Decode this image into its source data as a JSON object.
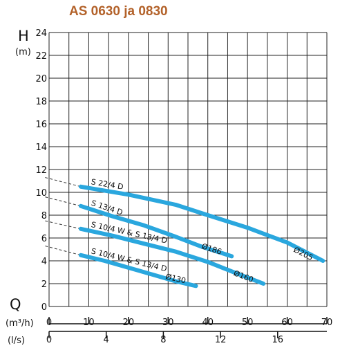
{
  "title": "AS 0630 ja 0830",
  "colors": {
    "title": "#b3622a",
    "curve": "#2aa7de",
    "grid": "#222222",
    "extension": "#333333"
  },
  "chart_data": {
    "type": "line",
    "title": "AS 0630 ja 0830",
    "y_axis": {
      "letter": "H",
      "unit": "(m)",
      "ticks": [
        "0",
        "2",
        "4",
        "6",
        "8",
        "10",
        "12",
        "14",
        "16",
        "18",
        "20",
        "22",
        "24"
      ],
      "ylim": [
        0,
        24
      ]
    },
    "x_axis": {
      "letter": "Q",
      "unit_primary": "(m³/h)",
      "ticks_primary": [
        "0",
        "10",
        "20",
        "30",
        "40",
        "50",
        "60",
        "70"
      ],
      "xlim": [
        0,
        70
      ],
      "unit_secondary": "(l/s)",
      "ticks_secondary": [
        "0",
        "4",
        "8",
        "12",
        "16"
      ]
    },
    "grid": true,
    "series": [
      {
        "name": "S 22/4 D",
        "end_label": "Ø205",
        "x": [
          8,
          20,
          32,
          40,
          50,
          60,
          69
        ],
        "y": [
          10.5,
          9.8,
          8.9,
          8.0,
          6.9,
          5.6,
          4.0
        ],
        "extension": [
          [
            -1,
            11.3
          ],
          [
            8,
            10.5
          ]
        ]
      },
      {
        "name": "S 13/4 D",
        "end_label": "Ø186",
        "x": [
          8,
          16,
          24,
          32,
          38,
          46
        ],
        "y": [
          8.8,
          7.9,
          7.1,
          6.1,
          5.3,
          4.4
        ],
        "extension": [
          [
            -1,
            9.6
          ],
          [
            8,
            8.8
          ]
        ]
      },
      {
        "name": "S 10/4 W & S 13/4 D",
        "end_label": "Ø160",
        "x": [
          8,
          16,
          24,
          32,
          40,
          48,
          54
        ],
        "y": [
          6.8,
          6.2,
          5.5,
          4.8,
          3.9,
          2.8,
          2.0
        ],
        "extension": [
          [
            -1,
            7.5
          ],
          [
            8,
            6.8
          ]
        ]
      },
      {
        "name": "S 10/4 W & S 13/4 D",
        "end_label": "Ø130",
        "x": [
          8,
          14,
          20,
          26,
          32,
          37
        ],
        "y": [
          4.5,
          4.0,
          3.4,
          2.8,
          2.2,
          1.8
        ],
        "extension": [
          [
            -1,
            5.3
          ],
          [
            8,
            4.5
          ]
        ]
      }
    ]
  }
}
